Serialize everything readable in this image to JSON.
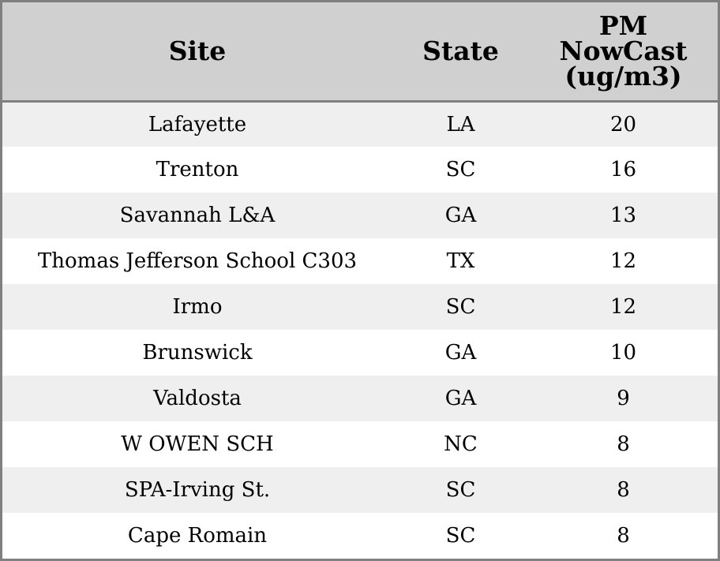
{
  "chart_data": {
    "type": "table",
    "columns": [
      "Site",
      "State",
      "PM NowCast (ug/m3)"
    ],
    "header_lines": [
      [
        "Site"
      ],
      [
        "State"
      ],
      [
        "PM",
        "NowCast",
        "(ug/m3)"
      ]
    ],
    "rows": [
      {
        "site": "Lafayette",
        "state": "LA",
        "pm": 20
      },
      {
        "site": "Trenton",
        "state": "SC",
        "pm": 16
      },
      {
        "site": "Savannah L&A",
        "state": "GA",
        "pm": 13
      },
      {
        "site": "Thomas Jefferson School C303",
        "state": "TX",
        "pm": 12
      },
      {
        "site": "Irmo",
        "state": "SC",
        "pm": 12
      },
      {
        "site": "Brunswick",
        "state": "GA",
        "pm": 10
      },
      {
        "site": "Valdosta",
        "state": "GA",
        "pm": 9
      },
      {
        "site": "W OWEN SCH",
        "state": "NC",
        "pm": 8
      },
      {
        "site": "SPA-Irving St.",
        "state": "SC",
        "pm": 8
      },
      {
        "site": "Cape Romain",
        "state": "SC",
        "pm": 8
      }
    ]
  },
  "colors": {
    "header_bg": "#d0d0d0",
    "row_alt_bg": "#efefef",
    "row_bg": "#ffffff",
    "border": "#808080"
  }
}
